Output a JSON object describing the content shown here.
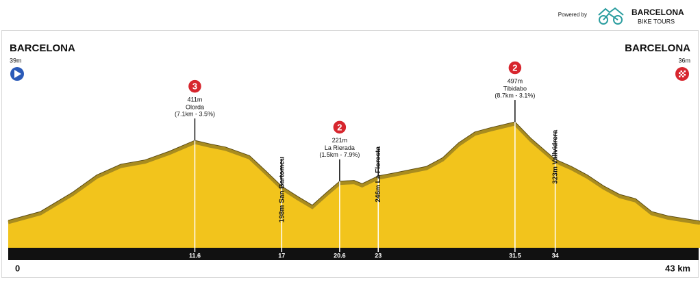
{
  "header": {
    "powered_by": "Powered by",
    "brand": "BARCELONA",
    "brand_sub": "BIKE TOURS"
  },
  "chart_data": {
    "type": "area",
    "start": {
      "name": "BARCELONA",
      "label": "39m"
    },
    "finish": {
      "name": "BARCELONA",
      "label": "36m"
    },
    "x": [
      0,
      2,
      4,
      5.5,
      7,
      8.5,
      10,
      11.6,
      12.5,
      13.5,
      15,
      16,
      17,
      18,
      18.9,
      19.8,
      20.6,
      21.5,
      22,
      23,
      24,
      26,
      27,
      28,
      29,
      30,
      31.5,
      32.5,
      34,
      35,
      36,
      37,
      38,
      39,
      40,
      41,
      43
    ],
    "values": [
      39,
      80,
      170,
      250,
      300,
      320,
      360,
      411,
      395,
      380,
      340,
      270,
      198,
      150,
      110,
      170,
      221,
      225,
      210,
      246,
      260,
      290,
      330,
      400,
      450,
      470,
      497,
      420,
      323,
      290,
      250,
      200,
      160,
      140,
      80,
      60,
      36
    ],
    "color": "#f2c41c",
    "xlim": [
      0,
      43
    ],
    "xticks": [
      0,
      11.6,
      17,
      20.6,
      23,
      31.5,
      34,
      {
        "value": 43,
        "label": "43 km"
      }
    ],
    "annotations": [
      {
        "km": 11.6,
        "elevation": 411,
        "label": "411m",
        "name": "Olorda",
        "detail": "(7.1km - 3.5%)",
        "category": 3
      },
      {
        "km": 17,
        "elevation": 198,
        "label": "198m",
        "name": "San Bartomeu"
      },
      {
        "km": 20.6,
        "elevation": 221,
        "label": "221m",
        "name": "La Rierada",
        "detail": "(1.5km - 7.9%)",
        "category": 2
      },
      {
        "km": 23,
        "elevation": 246,
        "label": "246m",
        "name": "La Floresta"
      },
      {
        "km": 31.5,
        "elevation": 497,
        "label": "497m",
        "name": "Tibidabo",
        "detail": "(8.7km - 3.1%)",
        "category": 2
      },
      {
        "km": 34,
        "elevation": 323,
        "label": "323m",
        "name": "Vallvidrera"
      }
    ]
  }
}
